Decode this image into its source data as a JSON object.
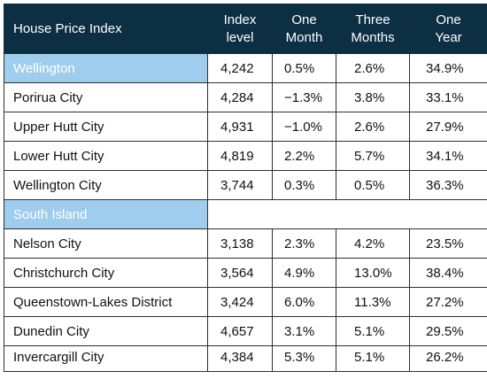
{
  "header": {
    "name": "House Price Index",
    "index_level": [
      "Index",
      "level"
    ],
    "one_month": [
      "One",
      "Month"
    ],
    "three_months": [
      "Three",
      "Months"
    ],
    "one_year": [
      "One",
      "Year"
    ]
  },
  "sections": [
    {
      "region": "Wellington",
      "region_values": [
        "4,242",
        "0.5%",
        "2.6%",
        "34.9%"
      ],
      "rows": [
        {
          "name": "Porirua City",
          "values": [
            "4,284",
            "−1.3%",
            "3.8%",
            "33.1%"
          ]
        },
        {
          "name": "Upper Hutt City",
          "values": [
            "4,931",
            "−1.0%",
            "2.6%",
            "27.9%"
          ]
        },
        {
          "name": "Lower Hutt City",
          "values": [
            "4,819",
            "2.2%",
            "5.7%",
            "34.1%"
          ]
        },
        {
          "name": "Wellington City",
          "values": [
            "3,744",
            "0.3%",
            "0.5%",
            "36.3%"
          ]
        }
      ]
    },
    {
      "region": "South Island",
      "rows": [
        {
          "name": "Nelson City",
          "values": [
            "3,138",
            "2.3%",
            "4.2%",
            "23.5%"
          ]
        },
        {
          "name": "Christchurch City",
          "values": [
            "3,564",
            "4.9%",
            "13.0%",
            "38.4%"
          ]
        },
        {
          "name": "Queenstown-Lakes District",
          "values": [
            "3,424",
            "6.0%",
            "11.3%",
            "27.2%"
          ]
        },
        {
          "name": "Dunedin City",
          "values": [
            "4,657",
            "3.1%",
            "5.1%",
            "29.5%"
          ]
        },
        {
          "name": "Invercargill City",
          "values": [
            "4,384",
            "5.3%",
            "5.1%",
            "26.2%"
          ]
        }
      ]
    }
  ],
  "colors": {
    "header_bg": "#0d2f44",
    "region_bg": "#9fcdee"
  }
}
